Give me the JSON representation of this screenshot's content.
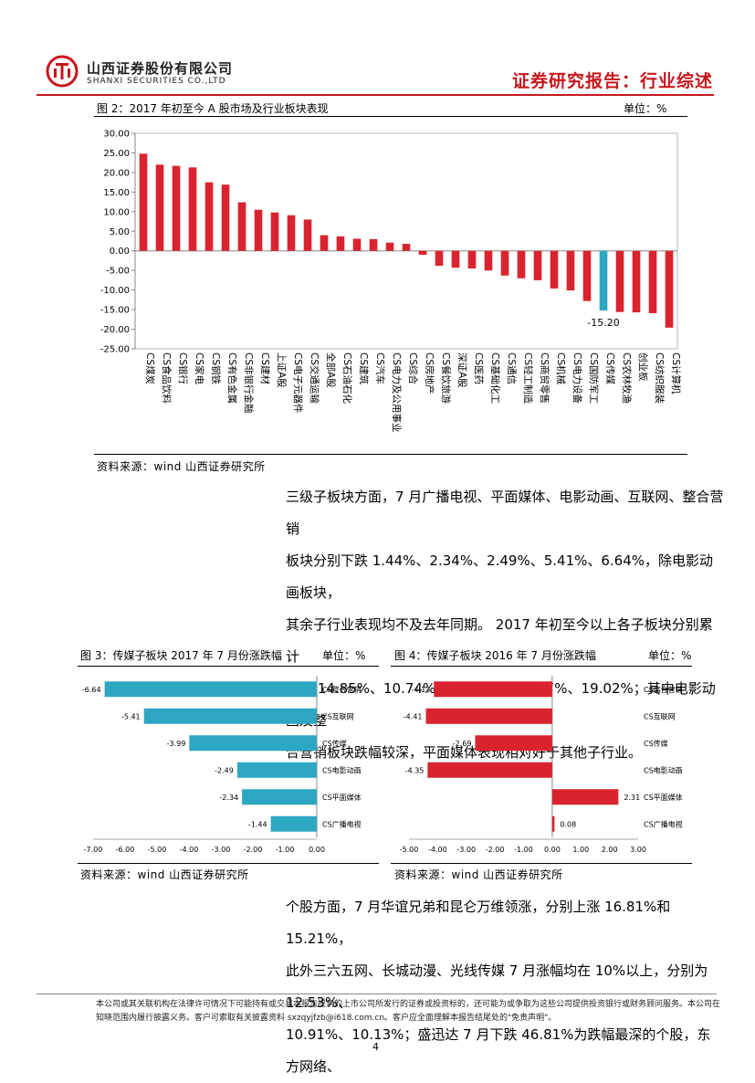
{
  "header": {
    "company_cn": "山西证券股份有限公司",
    "company_en": "SHANXI SECURITIES CO.,LTD",
    "report_type": "证券研究报告：行业综述",
    "accent_color": "#c8161d"
  },
  "fig2": {
    "title": "图 2：2017 年初至今 A 股市场及行业板块表现",
    "unit": "单位：%",
    "source": "资料来源：wind   山西证券研究所"
  },
  "paragraph1": [
    "三级子板块方面，7 月广播电视、平面媒体、电影动画、互联网、整合营销",
    "板块分别下跌 1.44%、2.34%、2.49%、5.41%、6.64%，除电影动画板块，",
    "其余子行业表现均不及去年同期。 2017 年初至今以上各子板块分别累计",
    "下跌 14.85%、10.74%、19.44%、13.97%、19.02%；其中电影动画及整",
    "合营销板块跌幅较深，平面媒体表现相对好于其他子行业。"
  ],
  "fig3": {
    "title": "图 3：传媒子板块 2017 年 7 月份涨跌幅",
    "unit": "单位：%",
    "source": "资料来源：wind   山西证券研究所"
  },
  "fig4": {
    "title": "图 4：传媒子板块 2016 年 7 月份涨跌幅",
    "unit": "单位：%",
    "source": "资料来源：wind   山西证券研究所"
  },
  "paragraph2": [
    "个股方面，7 月华谊兄弟和昆仑万维领涨，分别上涨 16.81%和 15.21%，",
    "此外三六五网、长城动漫、光线传媒 7 月涨幅均在 10%以上，分别为 12.53%、",
    "10.91%、10.13%；盛迅达 7 月下跌 46.81%为跌幅最深的个股，东方网络、"
  ],
  "footer": {
    "text": "本公司或其关联机构在法律许可情况下可能持有或交易本报告提到的上市公司所发行的证券或投资标的，还可能为或争取为这些公司提供投资银行或财务顾问服务。本公司在知晓范围内履行披露义务。客户可索取有关披露资料 sxzqyjfzb@i618.com.cn。客户应全面理解本报告结尾处的\"免责声明\"。",
    "page": "4"
  },
  "chart_data": [
    {
      "type": "bar",
      "id": "fig2",
      "categories": [
        "CS煤炭",
        "CS食品饮料",
        "CS银行",
        "CS家电",
        "CS钢铁",
        "CS有色金属",
        "CS非银行金融",
        "CS建材",
        "上证A股",
        "CS电子元器件",
        "CS交通运输",
        "全部A股",
        "CS石油石化",
        "CS建筑",
        "CS汽车",
        "CS电力及公用事业",
        "CS综合",
        "CS房地产",
        "CS餐饮旅游",
        "深证A股",
        "CS医药",
        "CS基础化工",
        "CS通信",
        "CS轻工制造",
        "CS商贸零售",
        "CS机械",
        "CS电力设备",
        "CS国防军工",
        "CS传媒",
        "CS农林牧渔",
        "创业板",
        "CS纺织服装",
        "CS计算机"
      ],
      "values": [
        24.8,
        22.0,
        21.7,
        21.3,
        17.5,
        16.9,
        12.4,
        10.5,
        9.8,
        9.1,
        8.0,
        4.0,
        3.7,
        3.1,
        3.0,
        2.1,
        1.8,
        -1.0,
        -3.8,
        -4.3,
        -4.5,
        -5.0,
        -6.3,
        -7.0,
        -7.5,
        -9.6,
        -10.1,
        -12.8,
        -15.2,
        -15.6,
        -15.7,
        -15.9,
        -19.6
      ],
      "highlight": {
        "category": "CS传媒",
        "label": "-15.20",
        "color": "#2ea7c2"
      },
      "bar_color": "#d9242f",
      "ylim": [
        -25,
        30
      ],
      "yticks": [
        "30.00",
        "25.00",
        "20.00",
        "15.00",
        "10.00",
        "5.00",
        "0.00",
        "-5.00",
        "-10.00",
        "-15.00",
        "-20.00",
        "-25.00"
      ],
      "grid": false
    },
    {
      "type": "bar",
      "id": "fig3",
      "orientation": "horizontal",
      "categories": [
        "CS整合营销",
        "CS互联网",
        "CS传媒",
        "CS电影动画",
        "CS平面媒体",
        "CS广播电视"
      ],
      "values": [
        -6.64,
        -5.41,
        -3.99,
        -2.49,
        -2.34,
        -1.44
      ],
      "labels": [
        "-6.64",
        "-5.41",
        "-3.99",
        "-2.49",
        "-2.34",
        "-1.44"
      ],
      "bar_color": "#2ea7c2",
      "xlim": [
        -7,
        0
      ],
      "xticks": [
        "-7.00",
        "-6.00",
        "-5.00",
        "-4.00",
        "-3.00",
        "-2.00",
        "-1.00",
        "0.00"
      ]
    },
    {
      "type": "bar",
      "id": "fig4",
      "orientation": "horizontal",
      "categories": [
        "CS整合营销",
        "CS互联网",
        "CS传媒",
        "CS电影动画",
        "CS平面媒体",
        "CS广播电视"
      ],
      "values": [
        -4.13,
        -4.41,
        -2.69,
        -4.35,
        2.31,
        0.08
      ],
      "labels": [
        "-4.13",
        "-4.41",
        "-2.69",
        "-4.35",
        "2.31",
        "0.08"
      ],
      "bar_color": "#d9242f",
      "xlim": [
        -5,
        3
      ],
      "xticks": [
        "-5.00",
        "-4.00",
        "-3.00",
        "-2.00",
        "-1.00",
        "0.00",
        "1.00",
        "2.00",
        "3.00"
      ]
    }
  ]
}
